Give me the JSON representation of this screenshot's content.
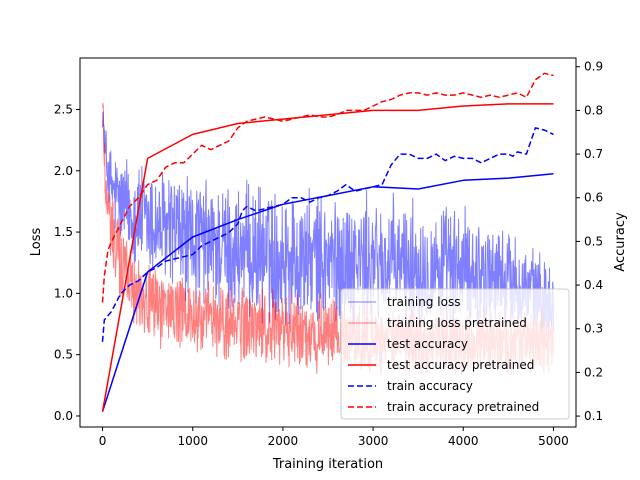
{
  "chart_data": {
    "type": "line",
    "title": "",
    "xlabel": "Training iteration",
    "ylabel_left": "Loss",
    "ylabel_right": "Accuracy",
    "xlim": [
      -250,
      5250
    ],
    "ylim_left": [
      -0.09,
      2.92
    ],
    "ylim_right": [
      0.075,
      0.92
    ],
    "x_ticks": [
      0,
      1000,
      2000,
      3000,
      4000,
      5000
    ],
    "y_ticks_left": [
      0.0,
      0.5,
      1.0,
      1.5,
      2.0,
      2.5
    ],
    "y_ticks_right": [
      0.1,
      0.2,
      0.3,
      0.4,
      0.5,
      0.6,
      0.7,
      0.8,
      0.9
    ],
    "grid": false,
    "legend_position": "lower-right",
    "colors": {
      "blue": "#0000ff",
      "red": "#ff0000"
    },
    "series": [
      {
        "name": "training loss",
        "axis": "left",
        "style": "thin-translucent",
        "color": "#0000ff",
        "envelope": {
          "x": [
            0,
            30,
            80,
            150,
            300,
            500,
            800,
            1000,
            1500,
            2000,
            2500,
            3000,
            3500,
            4000,
            4500,
            5000
          ],
          "low": [
            2.35,
            1.9,
            1.55,
            1.35,
            1.2,
            1.05,
            0.95,
            0.85,
            0.72,
            0.7,
            0.68,
            0.66,
            0.65,
            0.65,
            0.62,
            0.6
          ],
          "high": [
            2.65,
            2.4,
            2.25,
            2.2,
            2.15,
            2.1,
            2.05,
            2.0,
            1.95,
            1.9,
            1.85,
            1.85,
            1.8,
            1.75,
            1.6,
            1.25
          ]
        }
      },
      {
        "name": "training loss pretrained",
        "axis": "left",
        "style": "thin-translucent",
        "color": "#ff0000",
        "envelope": {
          "x": [
            0,
            30,
            80,
            150,
            300,
            500,
            800,
            1000,
            1500,
            2000,
            2500,
            3000,
            3500,
            4000,
            4500,
            5000
          ],
          "low": [
            2.3,
            1.6,
            1.2,
            0.95,
            0.75,
            0.58,
            0.5,
            0.45,
            0.4,
            0.35,
            0.32,
            0.3,
            0.3,
            0.3,
            0.3,
            0.3
          ],
          "high": [
            2.78,
            2.3,
            1.95,
            1.75,
            1.5,
            1.3,
            1.2,
            1.15,
            1.1,
            1.05,
            1.0,
            0.95,
            0.93,
            0.9,
            0.9,
            0.88
          ]
        }
      },
      {
        "name": "test accuracy",
        "axis": "right",
        "style": "solid",
        "color": "#0000ff",
        "x": [
          0,
          500,
          1000,
          1500,
          2000,
          2500,
          3000,
          3500,
          4000,
          4500,
          5000
        ],
        "y": [
          0.11,
          0.43,
          0.51,
          0.55,
          0.585,
          0.605,
          0.625,
          0.62,
          0.64,
          0.645,
          0.655
        ]
      },
      {
        "name": "test accuracy pretrained",
        "axis": "right",
        "style": "solid",
        "color": "#ff0000",
        "x": [
          0,
          500,
          1000,
          1500,
          2000,
          2500,
          3000,
          3500,
          4000,
          4500,
          5000
        ],
        "y": [
          0.11,
          0.69,
          0.745,
          0.77,
          0.78,
          0.79,
          0.8,
          0.8,
          0.81,
          0.815,
          0.815
        ]
      },
      {
        "name": "train accuracy",
        "axis": "right",
        "style": "dashed",
        "color": "#0000ff",
        "x": [
          0,
          20,
          100,
          200,
          300,
          400,
          500,
          600,
          700,
          800,
          900,
          1000,
          1100,
          1200,
          1300,
          1400,
          1500,
          1550,
          1600,
          1700,
          1800,
          1900,
          2000,
          2100,
          2200,
          2300,
          2400,
          2500,
          2600,
          2700,
          2800,
          2900,
          3000,
          3100,
          3200,
          3300,
          3400,
          3500,
          3600,
          3700,
          3800,
          3900,
          4000,
          4100,
          4200,
          4300,
          4400,
          4500,
          4550,
          4600,
          4700,
          4800,
          4900,
          5000
        ],
        "y": [
          0.27,
          0.32,
          0.34,
          0.38,
          0.4,
          0.41,
          0.43,
          0.44,
          0.455,
          0.46,
          0.465,
          0.47,
          0.49,
          0.5,
          0.51,
          0.52,
          0.54,
          0.57,
          0.58,
          0.57,
          0.575,
          0.58,
          0.585,
          0.6,
          0.6,
          0.59,
          0.6,
          0.605,
          0.615,
          0.63,
          0.615,
          0.62,
          0.625,
          0.63,
          0.675,
          0.7,
          0.7,
          0.69,
          0.69,
          0.7,
          0.685,
          0.695,
          0.69,
          0.69,
          0.68,
          0.69,
          0.7,
          0.7,
          0.695,
          0.705,
          0.7,
          0.76,
          0.755,
          0.745
        ]
      },
      {
        "name": "train accuracy pretrained",
        "axis": "right",
        "style": "dashed",
        "color": "#ff0000",
        "x": [
          0,
          20,
          60,
          100,
          200,
          300,
          400,
          500,
          600,
          700,
          800,
          900,
          1000,
          1100,
          1200,
          1300,
          1400,
          1500,
          1600,
          1700,
          1800,
          1900,
          2000,
          2100,
          2200,
          2300,
          2400,
          2500,
          2600,
          2700,
          2800,
          2900,
          3000,
          3100,
          3200,
          3300,
          3400,
          3500,
          3600,
          3700,
          3800,
          3900,
          4000,
          4100,
          4200,
          4300,
          4400,
          4500,
          4600,
          4700,
          4800,
          4900,
          5000
        ],
        "y": [
          0.36,
          0.42,
          0.48,
          0.5,
          0.54,
          0.58,
          0.6,
          0.63,
          0.64,
          0.67,
          0.68,
          0.68,
          0.7,
          0.72,
          0.71,
          0.72,
          0.73,
          0.76,
          0.775,
          0.78,
          0.785,
          0.78,
          0.775,
          0.78,
          0.785,
          0.79,
          0.785,
          0.785,
          0.79,
          0.8,
          0.8,
          0.8,
          0.81,
          0.82,
          0.825,
          0.835,
          0.84,
          0.84,
          0.835,
          0.84,
          0.835,
          0.835,
          0.84,
          0.835,
          0.83,
          0.835,
          0.83,
          0.835,
          0.84,
          0.83,
          0.87,
          0.885,
          0.88
        ]
      }
    ]
  }
}
